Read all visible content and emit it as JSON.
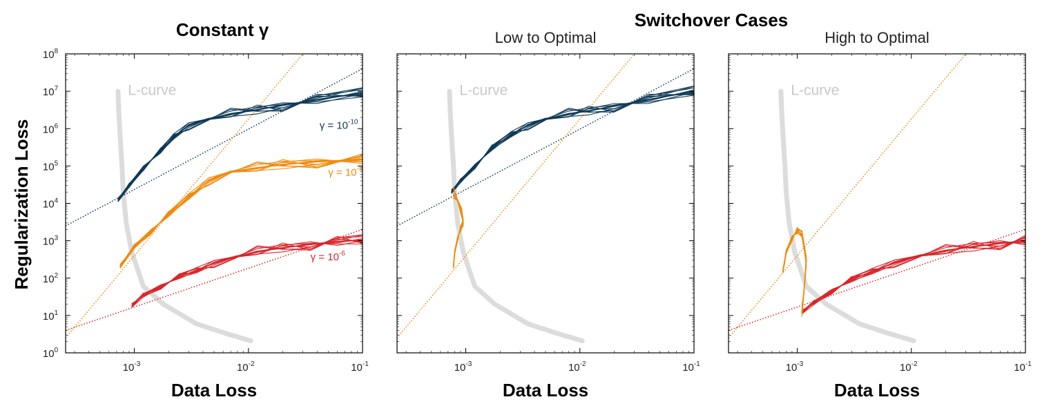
{
  "figure": {
    "suptitle": "Switchover Cases",
    "ylabel": "Regularization Loss",
    "xlabel": "Data Loss"
  },
  "chart_data": [
    {
      "type": "line",
      "title": "Constant γ",
      "xlabel": "Data Loss",
      "ylabel": "Regularization Loss",
      "xscale": "log",
      "yscale": "log",
      "xlim": [
        0.00025,
        0.1
      ],
      "ylim": [
        1,
        100000000
      ],
      "x_ticks": [
        "10^-3",
        "10^-2",
        "10^-1"
      ],
      "y_ticks": [
        "10^0",
        "10^1",
        "10^2",
        "10^3",
        "10^4",
        "10^5",
        "10^6",
        "10^7",
        "10^8"
      ],
      "lcurve": {
        "label": "L-curve",
        "x": [
          0.00072,
          0.00073,
          0.00075,
          0.00078,
          0.0008,
          0.00085,
          0.00095,
          0.0012,
          0.0018,
          0.0035,
          0.006,
          0.0105
        ],
        "y": [
          10000000,
          3000000,
          700000,
          100000,
          20000,
          3000,
          500,
          60,
          20,
          6,
          3.5,
          2.1
        ]
      },
      "series": [
        {
          "name": "gamma-1e-10",
          "label": "γ = 10⁻¹⁰",
          "color": "#0f3a57",
          "x": [
            0.00072,
            0.0009,
            0.0012,
            0.0017,
            0.0022,
            0.003,
            0.0045,
            0.007,
            0.012,
            0.02,
            0.04,
            0.1
          ],
          "y": [
            12000,
            30000,
            90000,
            250000,
            600000,
            1200000,
            1800000,
            2500000,
            3200000,
            4200000,
            6000000,
            9000000
          ]
        },
        {
          "name": "gamma-1e-8",
          "label": "γ = 10⁻⁸",
          "color": "#f08a0c",
          "x": [
            0.00075,
            0.001,
            0.0014,
            0.002,
            0.003,
            0.0045,
            0.007,
            0.012,
            0.02,
            0.04,
            0.1
          ],
          "y": [
            200,
            700,
            1800,
            5000,
            15000,
            40000,
            70000,
            90000,
            110000,
            130000,
            150000
          ]
        },
        {
          "name": "gamma-1e-6",
          "label": "γ = 10⁻⁶",
          "color": "#d9262b",
          "x": [
            0.00095,
            0.0012,
            0.0017,
            0.0025,
            0.0035,
            0.005,
            0.008,
            0.012,
            0.02,
            0.035,
            0.06,
            0.1
          ],
          "y": [
            18,
            35,
            60,
            110,
            160,
            250,
            380,
            520,
            650,
            800,
            950,
            1050
          ]
        }
      ],
      "annotations": [
        {
          "text": "γ = 10⁻¹⁰",
          "x": 0.042,
          "y": 1000000,
          "color": "#0f3a57"
        },
        {
          "text": "γ = 10⁻⁸",
          "x": 0.05,
          "y": 55000,
          "color": "#f08a0c"
        },
        {
          "text": "γ = 10⁻⁶",
          "x": 0.035,
          "y": 300,
          "color": "#d9262b"
        },
        {
          "text": "L-curve",
          "x": 0.00088,
          "y": 8000000,
          "color": "#c8c8c8"
        }
      ],
      "reference_lines": [
        {
          "color": "#0f3a57",
          "slope_decades": 1,
          "x": [
            0.00025,
            0.1
          ],
          "y": [
            2500,
            40000000
          ]
        },
        {
          "color": "#f08a0c",
          "slope_decades": 1,
          "x": [
            0.00025,
            0.03
          ],
          "y": [
            2.5,
            100000000
          ]
        },
        {
          "color": "#d9262b",
          "slope_decades": 1,
          "x": [
            0.00025,
            0.1
          ],
          "y": [
            4,
            2000
          ]
        }
      ]
    },
    {
      "type": "line",
      "title": "Low to Optimal",
      "xlabel": "Data Loss",
      "xscale": "log",
      "yscale": "log",
      "xlim": [
        0.00025,
        0.1
      ],
      "ylim": [
        1,
        100000000
      ],
      "x_ticks": [
        "10^-3",
        "10^-2",
        "10^-1"
      ],
      "lcurve": {
        "label": "L-curve",
        "x": [
          0.00072,
          0.00073,
          0.00075,
          0.00078,
          0.0008,
          0.00085,
          0.00095,
          0.0012,
          0.0018,
          0.0035,
          0.006,
          0.0105
        ],
        "y": [
          10000000,
          3000000,
          700000,
          100000,
          20000,
          3000,
          500,
          60,
          20,
          6,
          3.5,
          2.1
        ]
      },
      "series": [
        {
          "name": "optimal",
          "color": "#0f3a57",
          "x": [
            0.00075,
            0.0009,
            0.0012,
            0.0017,
            0.0025,
            0.0035,
            0.005,
            0.008,
            0.012,
            0.02,
            0.04,
            0.1
          ],
          "y": [
            20000,
            40000,
            100000,
            300000,
            700000,
            1200000,
            1800000,
            2500000,
            3000000,
            4000000,
            6000000,
            10000000
          ]
        },
        {
          "name": "low-start",
          "color": "#f08a0c",
          "x": [
            0.00078,
            0.0008,
            0.00085,
            0.0009,
            0.00095,
            0.00092,
            0.00085,
            0.00078
          ],
          "y": [
            200,
            500,
            1200,
            2000,
            3000,
            6000,
            12000,
            18000
          ]
        }
      ],
      "annotations": [
        {
          "text": "L-curve",
          "x": 0.00088,
          "y": 8000000,
          "color": "#c8c8c8"
        }
      ],
      "reference_lines": [
        {
          "color": "#0f3a57",
          "x": [
            0.00025,
            0.1
          ],
          "y": [
            2500,
            40000000
          ]
        },
        {
          "color": "#f08a0c",
          "x": [
            0.00025,
            0.03
          ],
          "y": [
            2.5,
            100000000
          ]
        }
      ]
    },
    {
      "type": "line",
      "title": "High to Optimal",
      "xlabel": "Data Loss",
      "xscale": "log",
      "yscale": "log",
      "xlim": [
        0.00025,
        0.1
      ],
      "ylim": [
        1,
        100000000
      ],
      "x_ticks": [
        "10^-3",
        "10^-2",
        "10^-1"
      ],
      "lcurve": {
        "label": "L-curve",
        "x": [
          0.00072,
          0.00073,
          0.00075,
          0.00078,
          0.0008,
          0.00085,
          0.00095,
          0.0012,
          0.0018,
          0.0035,
          0.006,
          0.0105
        ],
        "y": [
          10000000,
          3000000,
          700000,
          100000,
          20000,
          3000,
          500,
          60,
          20,
          6,
          3.5,
          2.1
        ]
      },
      "series": [
        {
          "name": "optimal",
          "color": "#d9262b",
          "x": [
            0.0011,
            0.0014,
            0.002,
            0.003,
            0.0045,
            0.007,
            0.012,
            0.02,
            0.035,
            0.06,
            0.1
          ],
          "y": [
            12,
            22,
            45,
            90,
            150,
            250,
            400,
            550,
            700,
            850,
            1000
          ]
        },
        {
          "name": "high-start",
          "color": "#f08a0c",
          "x": [
            0.00075,
            0.0008,
            0.0009,
            0.001,
            0.0011,
            0.0012,
            0.00115,
            0.0011
          ],
          "y": [
            150,
            500,
            1200,
            1800,
            1500,
            300,
            50,
            12
          ]
        }
      ],
      "annotations": [
        {
          "text": "L-curve",
          "x": 0.00088,
          "y": 8000000,
          "color": "#c8c8c8"
        }
      ],
      "reference_lines": [
        {
          "color": "#f08a0c",
          "x": [
            0.00025,
            0.03
          ],
          "y": [
            2.5,
            100000000
          ]
        },
        {
          "color": "#d9262b",
          "x": [
            0.00025,
            0.1
          ],
          "y": [
            4,
            2000
          ]
        }
      ]
    }
  ]
}
